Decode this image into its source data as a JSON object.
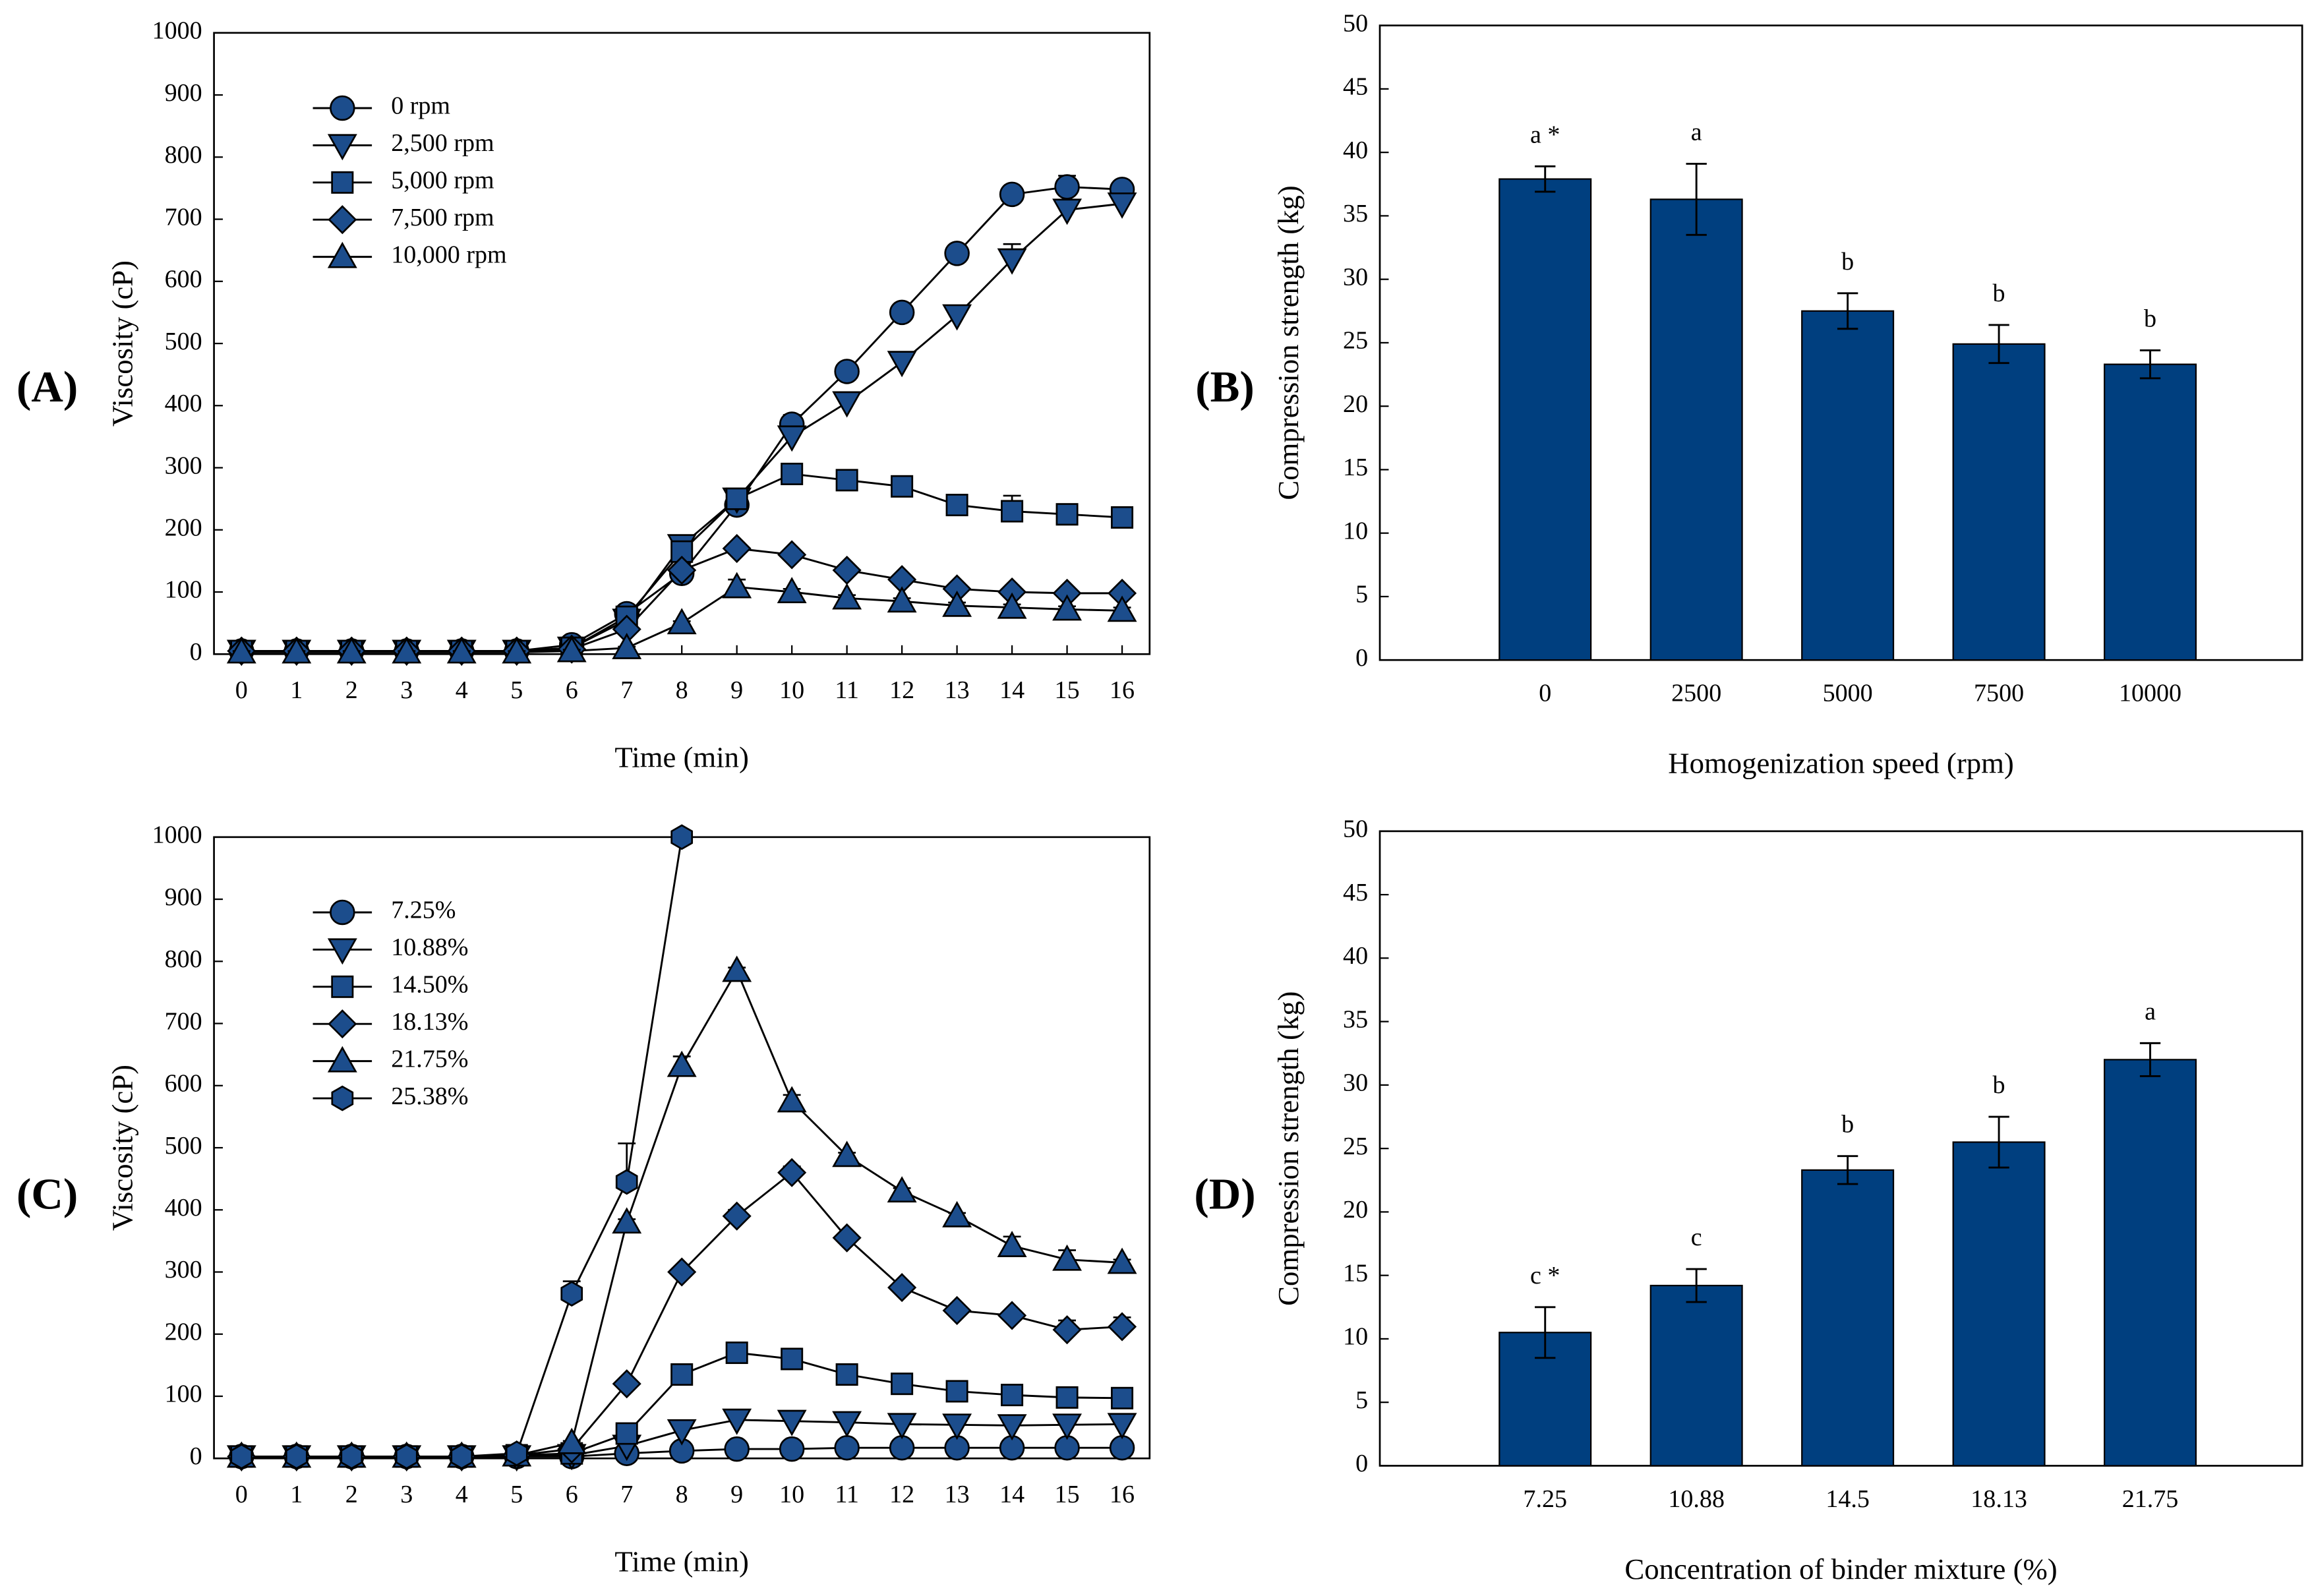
{
  "chart_data": [
    {
      "type": "line",
      "label": "(A)",
      "xlabel": "Time (min)",
      "ylabel": "Viscosity (cP)",
      "x": [
        0,
        1,
        2,
        3,
        4,
        5,
        6,
        7,
        8,
        9,
        10,
        11,
        12,
        13,
        14,
        15,
        16
      ],
      "xlim": [
        -0.5,
        16.5
      ],
      "xticks": [
        0,
        1,
        2,
        3,
        4,
        5,
        6,
        7,
        8,
        9,
        10,
        11,
        12,
        13,
        14,
        15,
        16
      ],
      "ylim": [
        0,
        1000
      ],
      "yticks": [
        0,
        100,
        200,
        300,
        400,
        500,
        600,
        700,
        800,
        900,
        1000
      ],
      "series": [
        {
          "name": "0 rpm",
          "marker": "circle",
          "color": "#1c4d8c",
          "values": [
            5,
            5,
            5,
            5,
            5,
            5,
            15,
            65,
            130,
            240,
            370,
            455,
            550,
            645,
            740,
            752,
            748
          ],
          "errors": [
            2,
            2,
            2,
            2,
            2,
            2,
            3,
            8,
            8,
            5,
            15,
            10,
            8,
            8,
            5,
            18,
            5
          ]
        },
        {
          "name": "2,500 rpm",
          "marker": "triangle-down",
          "color": "#1c4d8c",
          "values": [
            5,
            5,
            5,
            5,
            5,
            5,
            10,
            55,
            175,
            250,
            350,
            405,
            470,
            545,
            635,
            715,
            725
          ],
          "errors": [
            2,
            2,
            2,
            2,
            2,
            2,
            2,
            5,
            5,
            5,
            10,
            10,
            10,
            8,
            25,
            10,
            15
          ]
        },
        {
          "name": "5,000 rpm",
          "marker": "square",
          "color": "#1c4d8c",
          "values": [
            5,
            5,
            5,
            5,
            5,
            5,
            10,
            60,
            165,
            250,
            290,
            280,
            270,
            240,
            230,
            225,
            220
          ],
          "errors": [
            2,
            2,
            2,
            2,
            2,
            2,
            3,
            5,
            8,
            5,
            5,
            8,
            5,
            5,
            25,
            10,
            5
          ]
        },
        {
          "name": "7,500 rpm",
          "marker": "diamond",
          "color": "#1c4d8c",
          "values": [
            5,
            5,
            5,
            5,
            5,
            5,
            8,
            40,
            135,
            170,
            160,
            135,
            120,
            105,
            100,
            98,
            98
          ],
          "errors": [
            2,
            2,
            2,
            2,
            2,
            2,
            2,
            3,
            5,
            5,
            5,
            5,
            5,
            5,
            5,
            5,
            5
          ]
        },
        {
          "name": "10,000 rpm",
          "marker": "triangle-up",
          "color": "#1c4d8c",
          "values": [
            3,
            3,
            3,
            3,
            3,
            3,
            5,
            10,
            50,
            108,
            100,
            90,
            85,
            78,
            75,
            72,
            70
          ],
          "errors": [
            2,
            2,
            2,
            2,
            2,
            2,
            2,
            2,
            3,
            12,
            5,
            5,
            5,
            5,
            5,
            5,
            5
          ]
        }
      ]
    },
    {
      "type": "bar",
      "label": "(B)",
      "xlabel": "Homogenization speed (rpm)",
      "ylabel": "Compression strength (kg)",
      "categories": [
        "0",
        "2500",
        "5000",
        "7500",
        "10000"
      ],
      "values": [
        37.9,
        36.3,
        27.5,
        24.9,
        23.3
      ],
      "errors": [
        1.0,
        2.8,
        1.4,
        1.5,
        1.1
      ],
      "letters": [
        "a *",
        "a",
        "b",
        "b",
        "b"
      ],
      "color": "#003f7f",
      "ylim": [
        0,
        50
      ],
      "yticks": [
        0,
        5,
        10,
        15,
        20,
        25,
        30,
        35,
        40,
        45,
        50
      ]
    },
    {
      "type": "line",
      "label": "(C)",
      "xlabel": "Time (min)",
      "ylabel": "Viscosity (cP)",
      "x": [
        0,
        1,
        2,
        3,
        4,
        5,
        6,
        7,
        8,
        9,
        10,
        11,
        12,
        13,
        14,
        15,
        16
      ],
      "xlim": [
        -0.5,
        16.5
      ],
      "xticks": [
        0,
        1,
        2,
        3,
        4,
        5,
        6,
        7,
        8,
        9,
        10,
        11,
        12,
        13,
        14,
        15,
        16
      ],
      "ylim": [
        0,
        1000
      ],
      "yticks": [
        0,
        100,
        200,
        300,
        400,
        500,
        600,
        700,
        800,
        900,
        1000
      ],
      "series": [
        {
          "name": "7.25%",
          "marker": "circle",
          "color": "#1c4d8c",
          "values": [
            3,
            3,
            3,
            3,
            3,
            3,
            3,
            8,
            12,
            15,
            15,
            17,
            17,
            17,
            17,
            17,
            17
          ],
          "errors": [
            2,
            2,
            2,
            2,
            2,
            2,
            2,
            2,
            2,
            2,
            2,
            2,
            2,
            2,
            2,
            2,
            2
          ]
        },
        {
          "name": "10.88%",
          "marker": "triangle-down",
          "color": "#1c4d8c",
          "values": [
            3,
            3,
            3,
            3,
            3,
            3,
            5,
            20,
            45,
            62,
            60,
            58,
            55,
            54,
            53,
            54,
            55
          ],
          "errors": [
            2,
            2,
            2,
            2,
            2,
            2,
            2,
            3,
            3,
            3,
            3,
            3,
            3,
            3,
            3,
            3,
            3
          ]
        },
        {
          "name": "14.50%",
          "marker": "square",
          "color": "#1c4d8c",
          "values": [
            3,
            3,
            3,
            3,
            3,
            5,
            8,
            40,
            135,
            170,
            160,
            135,
            120,
            108,
            102,
            98,
            97
          ],
          "errors": [
            2,
            2,
            2,
            2,
            2,
            2,
            2,
            5,
            8,
            8,
            5,
            5,
            5,
            5,
            5,
            5,
            5
          ]
        },
        {
          "name": "18.13%",
          "marker": "diamond",
          "color": "#1c4d8c",
          "values": [
            3,
            3,
            3,
            3,
            3,
            5,
            15,
            120,
            300,
            390,
            460,
            355,
            275,
            238,
            230,
            207,
            212
          ],
          "errors": [
            2,
            2,
            2,
            2,
            2,
            2,
            3,
            5,
            5,
            10,
            10,
            5,
            5,
            5,
            5,
            15,
            15
          ]
        },
        {
          "name": "21.75%",
          "marker": "triangle-up",
          "color": "#1c4d8c",
          "values": [
            3,
            3,
            3,
            3,
            3,
            5,
            25,
            380,
            632,
            785,
            575,
            487,
            430,
            390,
            342,
            320,
            315
          ],
          "errors": [
            2,
            2,
            2,
            2,
            2,
            2,
            3,
            5,
            15,
            5,
            10,
            5,
            5,
            5,
            15,
            15,
            5
          ]
        },
        {
          "name": "25.38%",
          "marker": "hexagon",
          "color": "#1c4d8c",
          "values": [
            3,
            3,
            3,
            3,
            3,
            8,
            265,
            445,
            1000,
            null,
            null,
            null,
            null,
            null,
            null,
            null,
            null
          ],
          "errors": [
            2,
            2,
            2,
            2,
            2,
            3,
            20,
            62,
            5,
            null,
            null,
            null,
            null,
            null,
            null,
            null,
            null
          ]
        }
      ]
    },
    {
      "type": "bar",
      "label": "(D)",
      "xlabel": "Concentration of binder mixture (%)",
      "ylabel": "Compression strength (kg)",
      "categories": [
        "7.25",
        "10.88",
        "14.5",
        "18.13",
        "21.75"
      ],
      "values": [
        10.5,
        14.2,
        23.3,
        25.5,
        32.0
      ],
      "errors": [
        2.0,
        1.3,
        1.1,
        2.0,
        1.3
      ],
      "letters": [
        "c *",
        "c",
        "b",
        "b",
        "a"
      ],
      "color": "#003f7f",
      "ylim": [
        0,
        50
      ],
      "yticks": [
        0,
        5,
        10,
        15,
        20,
        25,
        30,
        35,
        40,
        45,
        50
      ]
    }
  ]
}
